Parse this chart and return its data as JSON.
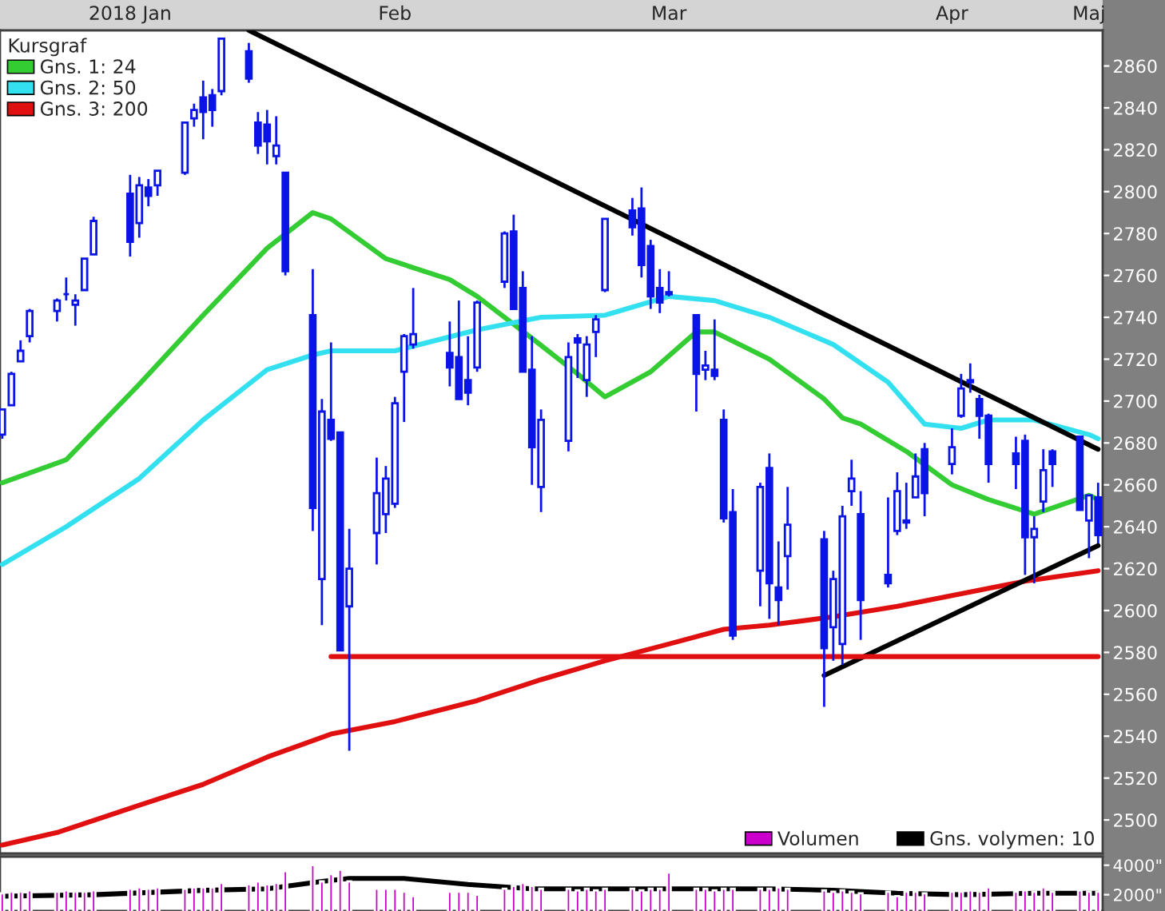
{
  "chart_data": [
    {
      "type": "candlestick",
      "color": "#0a14e6",
      "legend": "top left",
      "legend_title": "Kursgraf",
      "grid": false,
      "xlim": [
        "2018-01-01T18:00",
        "2018-05-02T12:00"
      ],
      "x": [
        "2018-01-02",
        "2018-01-03",
        "2018-01-04",
        "2018-01-05",
        "2018-01-08",
        "2018-01-09",
        "2018-01-10",
        "2018-01-11",
        "2018-01-12",
        "2018-01-16",
        "2018-01-17",
        "2018-01-18",
        "2018-01-19",
        "2018-01-22",
        "2018-01-23",
        "2018-01-24",
        "2018-01-25",
        "2018-01-26",
        "2018-01-29",
        "2018-01-30",
        "2018-01-31",
        "2018-02-01",
        "2018-02-02",
        "2018-02-05",
        "2018-02-06",
        "2018-02-07",
        "2018-02-08",
        "2018-02-09",
        "2018-02-12",
        "2018-02-13",
        "2018-02-14",
        "2018-02-15",
        "2018-02-16",
        "2018-02-20",
        "2018-02-21",
        "2018-02-22",
        "2018-02-23",
        "2018-02-26",
        "2018-02-27",
        "2018-02-28",
        "2018-03-01",
        "2018-03-02",
        "2018-03-05",
        "2018-03-06",
        "2018-03-07",
        "2018-03-08",
        "2018-03-09",
        "2018-03-12",
        "2018-03-13",
        "2018-03-14",
        "2018-03-15",
        "2018-03-16",
        "2018-03-19",
        "2018-03-20",
        "2018-03-21",
        "2018-03-22",
        "2018-03-23",
        "2018-03-26",
        "2018-03-27",
        "2018-03-28",
        "2018-03-29",
        "2018-04-02",
        "2018-04-03",
        "2018-04-04",
        "2018-04-05",
        "2018-04-06",
        "2018-04-09",
        "2018-04-10",
        "2018-04-11",
        "2018-04-12",
        "2018-04-13",
        "2018-04-16",
        "2018-04-17",
        "2018-04-18",
        "2018-04-19",
        "2018-04-20",
        "2018-04-23",
        "2018-04-24",
        "2018-04-25",
        "2018-04-26",
        "2018-04-27",
        "2018-04-30",
        "2018-05-01",
        "2018-05-02"
      ],
      "ohlc": [
        [
          2684,
          2696,
          2682,
          2696
        ],
        [
          2698,
          2714,
          2698,
          2713
        ],
        [
          2719,
          2729,
          2719,
          2724
        ],
        [
          2731,
          2744,
          2728,
          2743
        ],
        [
          2743,
          2749,
          2738,
          2748
        ],
        [
          2751,
          2759,
          2748,
          2751
        ],
        [
          2746,
          2751,
          2736,
          2748
        ],
        [
          2753,
          2768,
          2753,
          2768
        ],
        [
          2770,
          2788,
          2770,
          2786
        ],
        [
          2799,
          2808,
          2769,
          2776
        ],
        [
          2785,
          2807,
          2778,
          2803
        ],
        [
          2802,
          2806,
          2793,
          2798
        ],
        [
          2803,
          2810,
          2798,
          2810
        ],
        [
          2809,
          2833,
          2808,
          2833
        ],
        [
          2835,
          2842,
          2831,
          2839
        ],
        [
          2845,
          2853,
          2825,
          2838
        ],
        [
          2846,
          2849,
          2831,
          2839
        ],
        [
          2848,
          2873,
          2846,
          2873
        ],
        [
          2867,
          2871,
          2852,
          2854
        ],
        [
          2833,
          2838,
          2818,
          2822
        ],
        [
          2832,
          2839,
          2813,
          2824
        ],
        [
          2817,
          2836,
          2813,
          2822
        ],
        [
          2809,
          2809,
          2760,
          2762
        ],
        [
          2741,
          2763,
          2638,
          2649
        ],
        [
          2615,
          2701,
          2593,
          2695
        ],
        [
          2691,
          2728,
          2681,
          2682
        ],
        [
          2685,
          2685,
          2581,
          2581
        ],
        [
          2602,
          2639,
          2533,
          2620
        ],
        [
          2637,
          2673,
          2622,
          2656
        ],
        [
          2646,
          2669,
          2637,
          2663
        ],
        [
          2651,
          2702,
          2649,
          2699
        ],
        [
          2714,
          2732,
          2690,
          2731
        ],
        [
          2727,
          2754,
          2725,
          2732
        ],
        [
          2723,
          2738,
          2707,
          2716
        ],
        [
          2721,
          2748,
          2701,
          2701
        ],
        [
          2710,
          2731,
          2698,
          2704
        ],
        [
          2716,
          2748,
          2714,
          2747
        ],
        [
          2757,
          2781,
          2754,
          2780
        ],
        [
          2781,
          2789,
          2744,
          2744
        ],
        [
          2754,
          2762,
          2714,
          2714
        ],
        [
          2715,
          2731,
          2660,
          2678
        ],
        [
          2659,
          2696,
          2647,
          2691
        ],
        [
          2681,
          2728,
          2676,
          2721
        ],
        [
          2730,
          2732,
          2711,
          2728
        ],
        [
          2710,
          2731,
          2702,
          2727
        ],
        [
          2733,
          2741,
          2721,
          2739
        ],
        [
          2753,
          2787,
          2752,
          2787
        ],
        [
          2791,
          2797,
          2779,
          2783
        ],
        [
          2792,
          2802,
          2759,
          2765
        ],
        [
          2774,
          2777,
          2744,
          2750
        ],
        [
          2754,
          2763,
          2742,
          2747
        ],
        [
          2751,
          2762,
          2750,
          2752
        ],
        [
          2741,
          2741,
          2695,
          2713
        ],
        [
          2715,
          2724,
          2710,
          2717
        ],
        [
          2715,
          2739,
          2710,
          2712
        ],
        [
          2691,
          2696,
          2642,
          2644
        ],
        [
          2647,
          2658,
          2586,
          2588
        ],
        [
          2619,
          2661,
          2602,
          2659
        ],
        [
          2668,
          2675,
          2596,
          2613
        ],
        [
          2611,
          2633,
          2593,
          2605
        ],
        [
          2626,
          2659,
          2610,
          2641
        ],
        [
          2634,
          2638,
          2554,
          2582
        ],
        [
          2592,
          2619,
          2576,
          2615
        ],
        [
          2584,
          2650,
          2574,
          2645
        ],
        [
          2657,
          2672,
          2650,
          2663
        ],
        [
          2646,
          2657,
          2586,
          2605
        ],
        [
          2617,
          2654,
          2611,
          2613
        ],
        [
          2638,
          2666,
          2636,
          2657
        ],
        [
          2643,
          2661,
          2639,
          2642
        ],
        [
          2654,
          2675,
          2654,
          2664
        ],
        [
          2677,
          2680,
          2645,
          2656
        ],
        [
          2670,
          2687,
          2665,
          2678
        ],
        [
          2693,
          2713,
          2692,
          2706
        ],
        [
          2710,
          2718,
          2704,
          2709
        ],
        [
          2701,
          2703,
          2682,
          2693
        ],
        [
          2693,
          2694,
          2661,
          2670
        ],
        [
          2675,
          2683,
          2658,
          2670
        ],
        [
          2681,
          2684,
          2617,
          2635
        ],
        [
          2635,
          2645,
          2613,
          2639
        ],
        [
          2652,
          2677,
          2647,
          2667
        ],
        [
          2676,
          2677,
          2659,
          2670
        ],
        [
          2683,
          2683,
          2648,
          2648
        ],
        [
          2643,
          2655,
          2625,
          2655
        ],
        [
          2654,
          2661,
          2632,
          2636
        ]
      ],
      "xticks": [
        {
          "value": "2018-01-16",
          "label": "2018 Jan"
        },
        {
          "value": "2018-02-14",
          "label": "Feb"
        },
        {
          "value": "2018-03-16",
          "label": "Mar"
        },
        {
          "value": "2018-04-16",
          "label": "Apr"
        },
        {
          "value": "2018-05-01",
          "label": "Maj"
        }
      ],
      "ylim": [
        2484,
        2877
      ],
      "yticks": [
        2500,
        2520,
        2540,
        2560,
        2580,
        2600,
        2620,
        2640,
        2660,
        2680,
        2700,
        2720,
        2740,
        2760,
        2780,
        2800,
        2820,
        2840,
        2860
      ],
      "series": [
        {
          "name": "Gns. 1: 24",
          "type": "line",
          "color": "#33cc33",
          "x": [
            "2018-01-02",
            "2018-01-09",
            "2018-01-17",
            "2018-01-24",
            "2018-01-31",
            "2018-02-05",
            "2018-02-07",
            "2018-02-13",
            "2018-02-20",
            "2018-02-23",
            "2018-03-01",
            "2018-03-06",
            "2018-03-09",
            "2018-03-14",
            "2018-03-19",
            "2018-03-21",
            "2018-03-27",
            "2018-04-02",
            "2018-04-04",
            "2018-04-06",
            "2018-04-11",
            "2018-04-16",
            "2018-04-20",
            "2018-04-25",
            "2018-04-27",
            "2018-05-01",
            "2018-05-02"
          ],
          "values": [
            2661,
            2672,
            2708,
            2741,
            2773,
            2790,
            2787,
            2768,
            2758,
            2750,
            2730,
            2713,
            2702,
            2714,
            2733,
            2733,
            2720,
            2701,
            2692,
            2689,
            2676,
            2660,
            2653,
            2646,
            2649,
            2655,
            2653
          ]
        },
        {
          "name": "Gns. 2: 50",
          "type": "line",
          "color": "#33e0f0",
          "x": [
            "2018-01-02",
            "2018-01-09",
            "2018-01-17",
            "2018-01-24",
            "2018-01-31",
            "2018-02-05",
            "2018-02-07",
            "2018-02-14",
            "2018-02-23",
            "2018-03-02",
            "2018-03-09",
            "2018-03-16",
            "2018-03-21",
            "2018-03-27",
            "2018-04-03",
            "2018-04-09",
            "2018-04-13",
            "2018-04-17",
            "2018-04-20",
            "2018-04-25",
            "2018-05-01",
            "2018-05-02"
          ],
          "values": [
            2622,
            2640,
            2663,
            2691,
            2715,
            2722,
            2724,
            2724,
            2734,
            2740,
            2741,
            2750,
            2748,
            2740,
            2727,
            2709,
            2689,
            2687,
            2691,
            2691,
            2684,
            2682
          ]
        },
        {
          "name": "Gns. 3: 200",
          "type": "line",
          "color": "#e01010",
          "x": [
            "2018-01-02",
            "2018-01-08",
            "2018-01-17",
            "2018-01-24",
            "2018-01-31",
            "2018-02-07",
            "2018-02-14",
            "2018-02-23",
            "2018-03-02",
            "2018-03-09",
            "2018-03-16",
            "2018-03-22",
            "2018-03-27",
            "2018-04-03",
            "2018-04-10",
            "2018-04-17",
            "2018-04-24",
            "2018-05-02"
          ],
          "values": [
            2488,
            2494,
            2507,
            2517,
            2530,
            2541,
            2547,
            2557,
            2567,
            2576,
            2584,
            2591,
            2593,
            2597,
            2602,
            2608,
            2614,
            2619
          ]
        },
        {
          "type": "line",
          "color": "#000000",
          "x": [
            "2018-01-29",
            "2018-05-02"
          ],
          "values": [
            2877,
            2677
          ]
        },
        {
          "type": "line",
          "color": "#000000",
          "x": [
            "2018-04-02",
            "2018-05-02"
          ],
          "values": [
            2569,
            2631
          ]
        },
        {
          "type": "line",
          "color": "#e01010",
          "x": [
            "2018-02-07",
            "2018-05-02"
          ],
          "values": [
            2578,
            2578
          ]
        }
      ]
    },
    {
      "type": "bar",
      "legend": "top right",
      "tick_labels": "y",
      "grid": false,
      "xlim": [
        "2018-01-01T18:00",
        "2018-05-02T12:00"
      ],
      "x": [
        "2018-01-02",
        "2018-01-03",
        "2018-01-04",
        "2018-01-05",
        "2018-01-08",
        "2018-01-09",
        "2018-01-10",
        "2018-01-11",
        "2018-01-12",
        "2018-01-16",
        "2018-01-17",
        "2018-01-18",
        "2018-01-19",
        "2018-01-22",
        "2018-01-23",
        "2018-01-24",
        "2018-01-25",
        "2018-01-26",
        "2018-01-29",
        "2018-01-30",
        "2018-01-31",
        "2018-02-01",
        "2018-02-02",
        "2018-02-05",
        "2018-02-06",
        "2018-02-07",
        "2018-02-08",
        "2018-02-09",
        "2018-02-12",
        "2018-02-13",
        "2018-02-14",
        "2018-02-15",
        "2018-02-16",
        "2018-02-20",
        "2018-02-21",
        "2018-02-22",
        "2018-02-23",
        "2018-02-26",
        "2018-02-27",
        "2018-02-28",
        "2018-03-01",
        "2018-03-02",
        "2018-03-05",
        "2018-03-06",
        "2018-03-07",
        "2018-03-08",
        "2018-03-09",
        "2018-03-12",
        "2018-03-13",
        "2018-03-14",
        "2018-03-15",
        "2018-03-16",
        "2018-03-19",
        "2018-03-20",
        "2018-03-21",
        "2018-03-22",
        "2018-03-23",
        "2018-03-26",
        "2018-03-27",
        "2018-03-28",
        "2018-03-29",
        "2018-04-02",
        "2018-04-03",
        "2018-04-04",
        "2018-04-05",
        "2018-04-06",
        "2018-04-09",
        "2018-04-10",
        "2018-04-11",
        "2018-04-12",
        "2018-04-13",
        "2018-04-16",
        "2018-04-17",
        "2018-04-18",
        "2018-04-19",
        "2018-04-20",
        "2018-04-23",
        "2018-04-24",
        "2018-04-25",
        "2018-04-26",
        "2018-04-27",
        "2018-04-30",
        "2018-05-01",
        "2018-05-02"
      ],
      "ylim": [
        895,
        4580
      ],
      "yticks": [
        {
          "value": 4000,
          "label": "4000\""
        },
        {
          "value": 2000,
          "label": "2000\""
        }
      ],
      "series": [
        {
          "name": "Volumen",
          "color": "#cc00cc",
          "values": [
            2100,
            2200,
            2200,
            2300,
            2200,
            2300,
            2200,
            2200,
            2300,
            2400,
            2500,
            2400,
            2500,
            2400,
            2500,
            2500,
            2500,
            2800,
            2700,
            2900,
            2700,
            2800,
            3600,
            4000,
            2900,
            3400,
            3700,
            2900,
            2400,
            2400,
            2400,
            2200,
            1900,
            2200,
            2200,
            2200,
            2000,
            2400,
            2600,
            2800,
            2600,
            2400,
            2400,
            2300,
            2400,
            2300,
            2400,
            2400,
            2300,
            2400,
            2400,
            3500,
            2400,
            2400,
            2300,
            2400,
            2400,
            2400,
            2400,
            2500,
            2400,
            2300,
            2200,
            2300,
            2200,
            2100,
            2200,
            1900,
            2200,
            2200,
            2100,
            2200,
            2200,
            2300,
            2200,
            2500,
            2200,
            2300,
            2200,
            2500,
            2200,
            2300,
            2200,
            2200
          ]
        },
        {
          "name": "Gns. volymen: 10",
          "type": "line",
          "color": "#000000",
          "x": [
            "2018-01-02",
            "2018-01-12",
            "2018-01-24",
            "2018-01-31",
            "2018-02-06",
            "2018-02-09",
            "2018-02-15",
            "2018-02-22",
            "2018-03-01",
            "2018-03-15",
            "2018-03-27",
            "2018-04-03",
            "2018-04-10",
            "2018-04-17",
            "2018-04-25",
            "2018-05-02"
          ],
          "values": [
            1900,
            2000,
            2300,
            2400,
            2900,
            3100,
            3100,
            2700,
            2400,
            2400,
            2400,
            2300,
            2100,
            2000,
            2100,
            2100
          ]
        }
      ]
    }
  ]
}
